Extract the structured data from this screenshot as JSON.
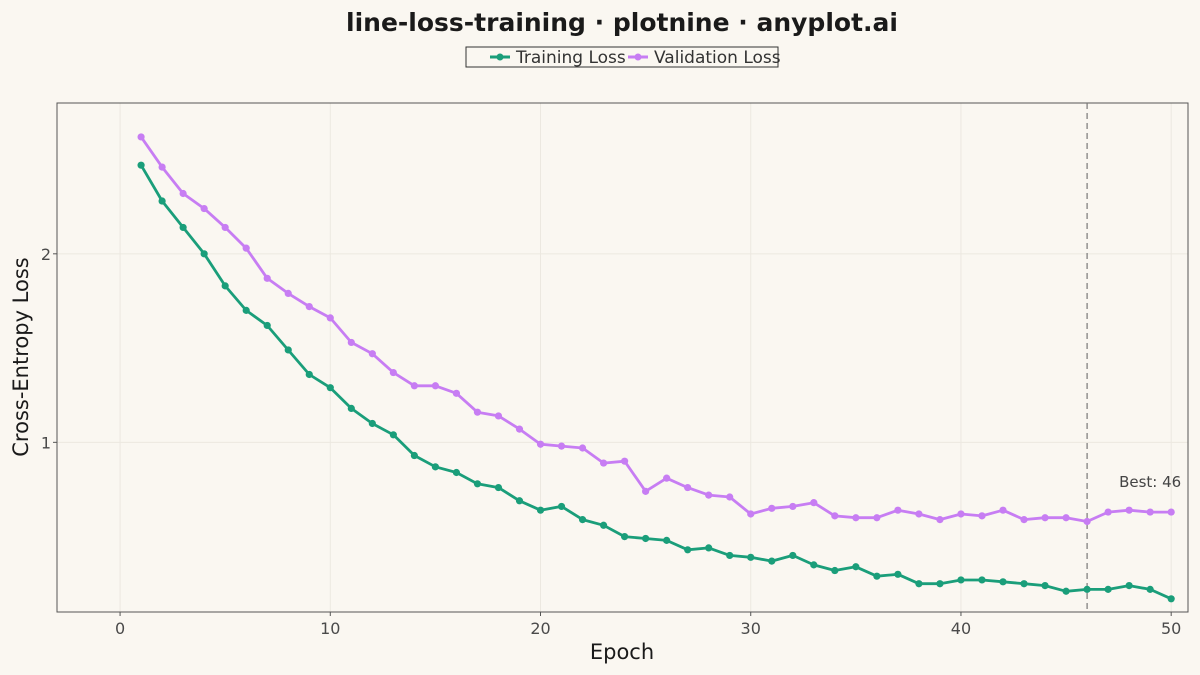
{
  "chart_data": {
    "type": "line",
    "title": "line-loss-training · plotnine · anyplot.ai",
    "xlabel": "Epoch",
    "ylabel": "Cross-Entropy Loss",
    "xlim": [
      -3,
      50.8
    ],
    "ylim": [
      0.1,
      2.8
    ],
    "xticks": [
      0,
      10,
      20,
      30,
      40,
      50
    ],
    "yticks": [
      1,
      2
    ],
    "grid": true,
    "legend_position": "top-center",
    "x": [
      1,
      2,
      3,
      4,
      5,
      6,
      7,
      8,
      9,
      10,
      11,
      12,
      13,
      14,
      15,
      16,
      17,
      18,
      19,
      20,
      21,
      22,
      23,
      24,
      25,
      26,
      27,
      28,
      29,
      30,
      31,
      32,
      33,
      34,
      35,
      36,
      37,
      38,
      39,
      40,
      41,
      42,
      43,
      44,
      45,
      46,
      47,
      48,
      49,
      50
    ],
    "series": [
      {
        "name": "Training Loss",
        "color": "#1A9E7A",
        "values": [
          2.47,
          2.28,
          2.14,
          2.0,
          1.83,
          1.7,
          1.62,
          1.49,
          1.36,
          1.29,
          1.18,
          1.1,
          1.04,
          0.93,
          0.87,
          0.84,
          0.78,
          0.76,
          0.69,
          0.64,
          0.66,
          0.59,
          0.56,
          0.5,
          0.49,
          0.48,
          0.43,
          0.44,
          0.4,
          0.39,
          0.37,
          0.4,
          0.35,
          0.32,
          0.34,
          0.29,
          0.3,
          0.25,
          0.25,
          0.27,
          0.27,
          0.26,
          0.25,
          0.24,
          0.21,
          0.22,
          0.22,
          0.24,
          0.22,
          0.17
        ]
      },
      {
        "name": "Validation Loss",
        "color": "#C77DF3",
        "values": [
          2.62,
          2.46,
          2.32,
          2.24,
          2.14,
          2.03,
          1.87,
          1.79,
          1.72,
          1.66,
          1.53,
          1.47,
          1.37,
          1.3,
          1.3,
          1.26,
          1.16,
          1.14,
          1.07,
          0.99,
          0.98,
          0.97,
          0.89,
          0.9,
          0.74,
          0.81,
          0.76,
          0.72,
          0.71,
          0.62,
          0.65,
          0.66,
          0.68,
          0.61,
          0.6,
          0.6,
          0.64,
          0.62,
          0.59,
          0.62,
          0.61,
          0.64,
          0.59,
          0.6,
          0.6,
          0.58,
          0.63,
          0.64,
          0.63,
          0.63
        ]
      }
    ],
    "annotations": [
      {
        "type": "vline",
        "x": 46,
        "label": "Best: 46",
        "label_y": 0.79
      }
    ]
  }
}
